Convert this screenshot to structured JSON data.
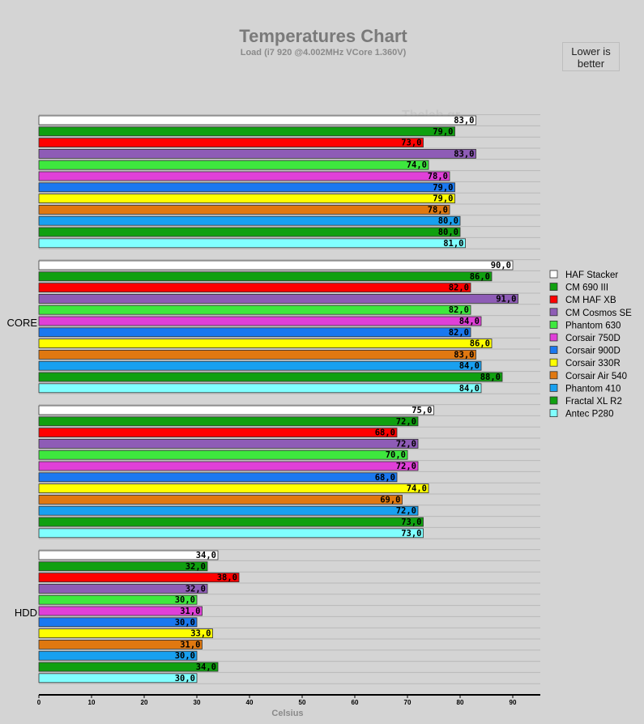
{
  "chart_data": {
    "type": "bar",
    "orientation": "horizontal",
    "title": "Temperatures Chart",
    "subtitle": "Load (i7 920 @4.002MHz VCore 1.360V)",
    "note": [
      "Lower is",
      "better"
    ],
    "watermark": "Thelab.gr",
    "xlabel": "Celsius",
    "xlim": [
      0,
      95
    ],
    "xticks": [
      0,
      10,
      20,
      30,
      40,
      50,
      60,
      70,
      80,
      90
    ],
    "groups": [
      "",
      "CORE",
      "",
      "HDD"
    ],
    "series": [
      {
        "name": "HAF Stacker",
        "color": "#ffffff",
        "values": [
          83.0,
          90.0,
          75.0,
          34.0
        ]
      },
      {
        "name": "CM 690 III",
        "color": "#10a010",
        "values": [
          79.0,
          86.0,
          72.0,
          32.0
        ]
      },
      {
        "name": "CM HAF XB",
        "color": "#ff0000",
        "values": [
          73.0,
          82.0,
          68.0,
          38.0
        ]
      },
      {
        "name": "CM Cosmos SE",
        "color": "#8e5cb6",
        "values": [
          83.0,
          91.0,
          72.0,
          32.0
        ]
      },
      {
        "name": "Phantom 630",
        "color": "#3ee83e",
        "values": [
          74.0,
          82.0,
          70.0,
          30.0
        ]
      },
      {
        "name": "Corsair 750D",
        "color": "#e040d8",
        "values": [
          78.0,
          84.0,
          72.0,
          31.0
        ]
      },
      {
        "name": "Corsair 900D",
        "color": "#1a78f0",
        "values": [
          79.0,
          82.0,
          68.0,
          30.0
        ]
      },
      {
        "name": "Corsair 330R",
        "color": "#ffff00",
        "values": [
          79.0,
          86.0,
          74.0,
          33.0
        ]
      },
      {
        "name": "Corsair Air 540",
        "color": "#e07810",
        "values": [
          78.0,
          83.0,
          69.0,
          31.0
        ]
      },
      {
        "name": "Phantom 410",
        "color": "#18a0f0",
        "values": [
          80.0,
          84.0,
          72.0,
          30.0
        ]
      },
      {
        "name": "Fractal XL R2",
        "color": "#10a010",
        "values": [
          80.0,
          88.0,
          73.0,
          34.0
        ]
      },
      {
        "name": "Antec P280",
        "color": "#80ffff",
        "values": [
          81.0,
          84.0,
          73.0,
          30.0
        ]
      }
    ]
  }
}
